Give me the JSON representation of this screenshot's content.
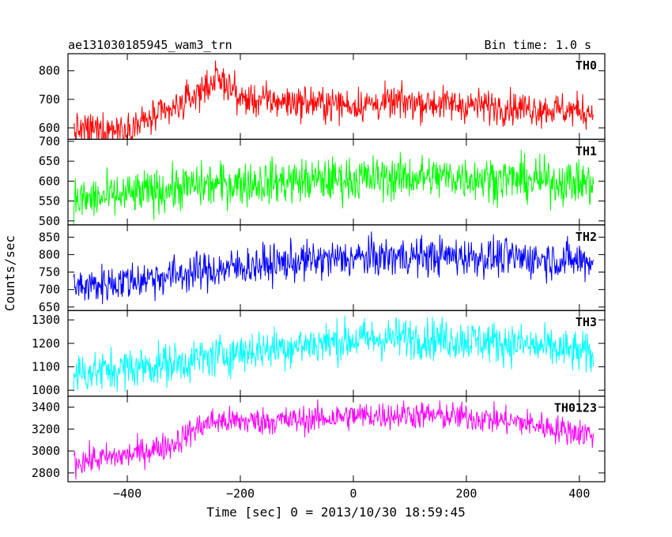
{
  "header": {
    "title": "ae131030185945_wam3_trn",
    "bin_time": "Bin time: 1.0 s"
  },
  "chart_data": {
    "type": "line",
    "title": "ae131030185945_wam3_trn",
    "subtitle": "Bin time: 1.0 s",
    "xlabel": "Time [sec] 0 = 2013/10/30 18:59:45",
    "ylabel": "Counts/sec",
    "xlim": [
      -505,
      445
    ],
    "x_ticks": [
      -400,
      -200,
      0,
      200,
      400
    ],
    "x_tick_labels": [
      "−400",
      "−200",
      "0",
      "200",
      "400"
    ],
    "grid": false,
    "panels": [
      {
        "name": "TH0",
        "color": "#ff0000",
        "ylim": [
          560,
          860
        ],
        "yticks": [
          600,
          700,
          800
        ],
        "noise": 30,
        "trend": [
          [
            -495,
            590
          ],
          [
            -400,
            600
          ],
          [
            -320,
            660
          ],
          [
            -270,
            730
          ],
          [
            -245,
            770
          ],
          [
            -220,
            750
          ],
          [
            -200,
            700
          ],
          [
            -100,
            690
          ],
          [
            0,
            680
          ],
          [
            100,
            690
          ],
          [
            200,
            680
          ],
          [
            300,
            670
          ],
          [
            400,
            660
          ],
          [
            425,
            655
          ]
        ]
      },
      {
        "name": "TH1",
        "color": "#00ff00",
        "ylim": [
          490,
          705
        ],
        "yticks": [
          500,
          550,
          600,
          650,
          700
        ],
        "noise": 28,
        "trend": [
          [
            -495,
            550
          ],
          [
            -400,
            565
          ],
          [
            -300,
            585
          ],
          [
            -200,
            595
          ],
          [
            -100,
            600
          ],
          [
            0,
            605
          ],
          [
            100,
            610
          ],
          [
            200,
            610
          ],
          [
            300,
            603
          ],
          [
            425,
            595
          ]
        ]
      },
      {
        "name": "TH2",
        "color": "#0000ff",
        "ylim": [
          640,
          885
        ],
        "yticks": [
          650,
          700,
          750,
          800,
          850
        ],
        "noise": 28,
        "trend": [
          [
            -495,
            705
          ],
          [
            -400,
            725
          ],
          [
            -300,
            745
          ],
          [
            -200,
            765
          ],
          [
            -100,
            780
          ],
          [
            0,
            790
          ],
          [
            100,
            795
          ],
          [
            200,
            795
          ],
          [
            300,
            790
          ],
          [
            425,
            780
          ]
        ]
      },
      {
        "name": "TH3",
        "color": "#00ffff",
        "ylim": [
          975,
          1340
        ],
        "yticks": [
          1000,
          1100,
          1200,
          1300
        ],
        "noise": 45,
        "trend": [
          [
            -495,
            1070
          ],
          [
            -400,
            1095
          ],
          [
            -300,
            1120
          ],
          [
            -200,
            1165
          ],
          [
            -100,
            1190
          ],
          [
            0,
            1215
          ],
          [
            100,
            1225
          ],
          [
            200,
            1215
          ],
          [
            300,
            1195
          ],
          [
            400,
            1160
          ],
          [
            425,
            1150
          ]
        ]
      },
      {
        "name": "TH0123",
        "color": "#ff00ff",
        "ylim": [
          2720,
          3500
        ],
        "yticks": [
          2800,
          3000,
          3200,
          3400
        ],
        "noise": 65,
        "trend": [
          [
            -495,
            2900
          ],
          [
            -400,
            2960
          ],
          [
            -320,
            3060
          ],
          [
            -280,
            3200
          ],
          [
            -250,
            3270
          ],
          [
            -200,
            3270
          ],
          [
            -100,
            3280
          ],
          [
            0,
            3320
          ],
          [
            100,
            3330
          ],
          [
            200,
            3310
          ],
          [
            300,
            3260
          ],
          [
            360,
            3200
          ],
          [
            425,
            3150
          ]
        ]
      }
    ]
  }
}
